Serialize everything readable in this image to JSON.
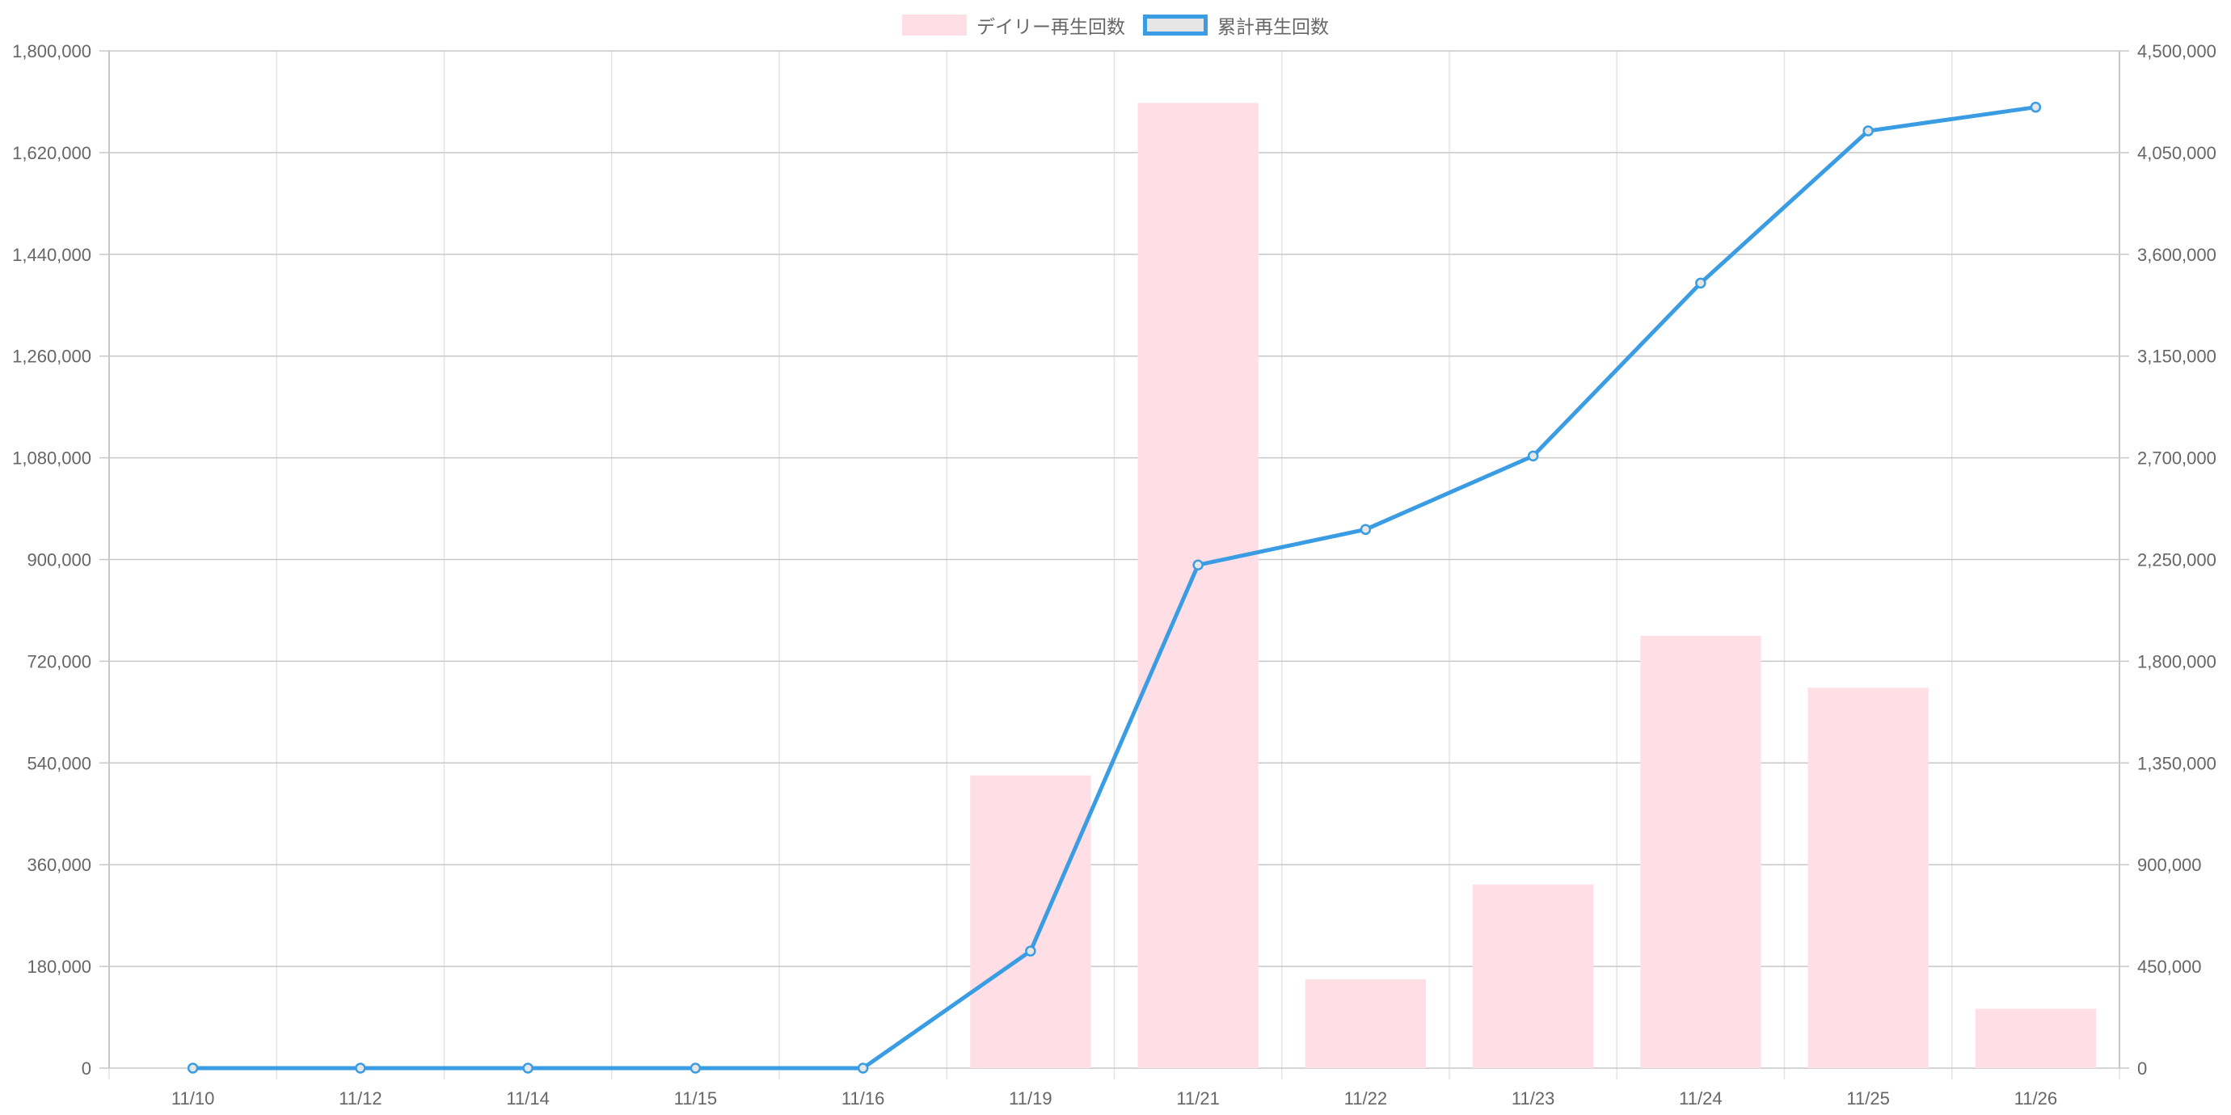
{
  "legend": {
    "bar_label": "デイリー再生回数",
    "line_label": "累計再生回数"
  },
  "colors": {
    "bar_fill": "#ffdfe5",
    "line_stroke": "#3a9de3",
    "grid_major": "#c8c8c8",
    "grid_minor": "#e3e3e3",
    "text": "#666666"
  },
  "chart_data": {
    "type": "bar",
    "categories": [
      "11/10",
      "11/12",
      "11/14",
      "11/15",
      "11/16",
      "11/19",
      "11/21",
      "11/22",
      "11/23",
      "11/24",
      "11/25",
      "11/26"
    ],
    "series": [
      {
        "name": "デイリー再生回数",
        "type": "bar",
        "axis": "left",
        "values": [
          0,
          0,
          0,
          0,
          0,
          518000,
          1708000,
          157000,
          325000,
          765000,
          673000,
          105000
        ]
      },
      {
        "name": "累計再生回数",
        "type": "line",
        "axis": "right",
        "values": [
          0,
          0,
          0,
          0,
          0,
          518000,
          2226000,
          2383000,
          2708000,
          3473000,
          4146000,
          4251000
        ]
      }
    ],
    "y_left": {
      "min": 0,
      "max": 1800000,
      "ticks": [
        "0",
        "180,000",
        "360,000",
        "540,000",
        "720,000",
        "900,000",
        "1,080,000",
        "1,260,000",
        "1,440,000",
        "1,620,000",
        "1,800,000"
      ]
    },
    "y_right": {
      "min": 0,
      "max": 4500000,
      "ticks": [
        "0",
        "450,000",
        "900,000",
        "1,350,000",
        "1,800,000",
        "2,250,000",
        "2,700,000",
        "3,150,000",
        "3,600,000",
        "4,050,000",
        "4,500,000"
      ]
    },
    "grid": true,
    "legend_position": "top-center"
  }
}
